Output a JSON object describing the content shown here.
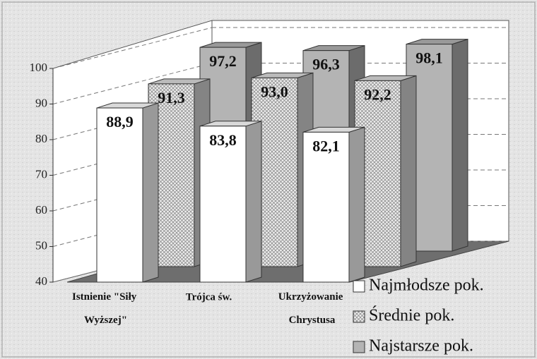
{
  "chart_data": {
    "type": "bar3d",
    "categories": [
      "Istnienie \"Siły Wyższej\"",
      "Trójca św.",
      "Ukrzyżowanie Chrystusa"
    ],
    "series": [
      {
        "name": "Najmłodsze pok.",
        "color": "#ffffff",
        "values": [
          88.9,
          83.8,
          82.1
        ],
        "value_labels": [
          "88,9",
          "83,8",
          "82,1"
        ]
      },
      {
        "name": "Średnie pok.",
        "color": "#dcdcdc",
        "pattern": "crosshatch",
        "values": [
          91.3,
          93,
          92.2
        ],
        "value_labels": [
          "91,3",
          "93,0",
          "92,2"
        ]
      },
      {
        "name": "Najstarsze pok.",
        "color": "#b4b4b4",
        "values": [
          97.2,
          96.3,
          98.1
        ],
        "value_labels": [
          "97,2",
          "96,3",
          "98,1"
        ]
      }
    ],
    "ylim": [
      40,
      100
    ],
    "yticks": [
      40,
      50,
      60,
      70,
      80,
      90,
      100
    ],
    "grid": true
  }
}
